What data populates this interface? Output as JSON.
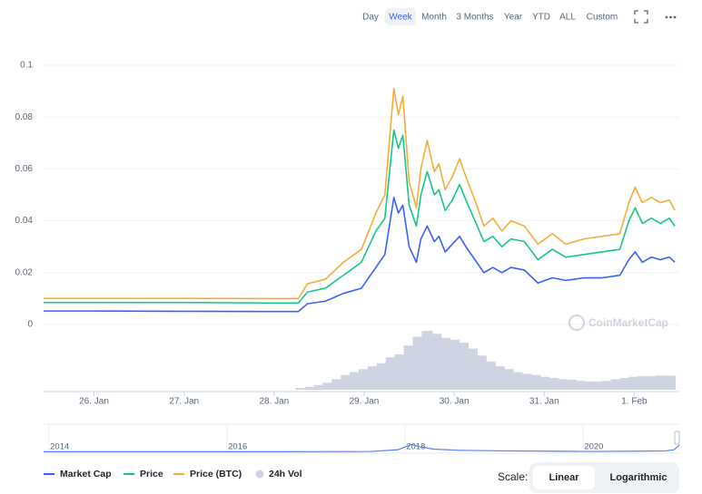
{
  "chart_data": {
    "type": "line",
    "ranges": [
      "Day",
      "Week",
      "Month",
      "3 Months",
      "Year",
      "YTD",
      "ALL",
      "Custom"
    ],
    "selected_range": 1,
    "x": [
      25.44,
      25.96,
      26.96,
      27.97,
      28.27,
      28.37,
      28.57,
      28.77,
      28.97,
      29.13,
      29.23,
      29.33,
      29.38,
      29.43,
      29.5,
      29.58,
      29.63,
      29.7,
      29.78,
      29.83,
      29.9,
      29.98,
      30.06,
      30.13,
      30.23,
      30.33,
      30.43,
      30.53,
      30.63,
      30.78,
      30.93,
      31.09,
      31.24,
      31.44,
      31.64,
      31.84,
      31.94,
      32.01,
      32.09,
      32.19,
      32.29,
      32.39,
      32.45
    ],
    "xlim": [
      25.44,
      32.5
    ],
    "xticks": [
      {
        "value": 26,
        "label": "26. Jan"
      },
      {
        "value": 27,
        "label": "27. Jan"
      },
      {
        "value": 28,
        "label": "28. Jan"
      },
      {
        "value": 29,
        "label": "29. Jan"
      },
      {
        "value": 30,
        "label": "30. Jan"
      },
      {
        "value": 31,
        "label": "31. Jan"
      },
      {
        "value": 32,
        "label": "1. Feb"
      }
    ],
    "ylim": [
      0,
      0.1
    ],
    "yticks": [
      0,
      0.02,
      0.04,
      0.06,
      0.08,
      0.1
    ],
    "grid": true,
    "series": [
      {
        "name": "Market Cap",
        "color": "#3861fb",
        "values": [
          0.0052,
          0.0052,
          0.0051,
          0.005,
          0.005,
          0.008,
          0.009,
          0.012,
          0.014,
          0.022,
          0.027,
          0.049,
          0.043,
          0.046,
          0.03,
          0.024,
          0.033,
          0.038,
          0.032,
          0.034,
          0.028,
          0.031,
          0.034,
          0.03,
          0.025,
          0.02,
          0.022,
          0.02,
          0.022,
          0.021,
          0.016,
          0.018,
          0.017,
          0.018,
          0.018,
          0.019,
          0.025,
          0.028,
          0.024,
          0.026,
          0.025,
          0.026,
          0.024
        ]
      },
      {
        "name": "Price",
        "color": "#16c784",
        "values": [
          0.0085,
          0.0085,
          0.0085,
          0.0083,
          0.0083,
          0.0125,
          0.014,
          0.019,
          0.024,
          0.036,
          0.041,
          0.075,
          0.068,
          0.073,
          0.046,
          0.038,
          0.05,
          0.059,
          0.05,
          0.052,
          0.044,
          0.048,
          0.054,
          0.048,
          0.04,
          0.032,
          0.034,
          0.03,
          0.033,
          0.032,
          0.025,
          0.029,
          0.026,
          0.027,
          0.028,
          0.029,
          0.04,
          0.045,
          0.039,
          0.041,
          0.039,
          0.041,
          0.038
        ]
      },
      {
        "name": "Price (BTC)",
        "color": "#f5ac37",
        "values": [
          0.0101,
          0.0101,
          0.0101,
          0.01,
          0.01,
          0.0157,
          0.0175,
          0.024,
          0.029,
          0.043,
          0.05,
          0.091,
          0.081,
          0.088,
          0.055,
          0.045,
          0.06,
          0.071,
          0.059,
          0.062,
          0.052,
          0.057,
          0.064,
          0.057,
          0.048,
          0.038,
          0.041,
          0.036,
          0.04,
          0.038,
          0.031,
          0.035,
          0.031,
          0.033,
          0.034,
          0.035,
          0.047,
          0.053,
          0.047,
          0.049,
          0.047,
          0.048,
          0.044
        ]
      }
    ],
    "volume": {
      "name": "24h Vol",
      "color": "#cfd4e3",
      "ylim": [
        0,
        100
      ],
      "x": [
        28.3,
        28.4,
        28.5,
        28.6,
        28.7,
        28.8,
        28.9,
        29.0,
        29.1,
        29.2,
        29.3,
        29.4,
        29.5,
        29.6,
        29.7,
        29.8,
        29.9,
        30.0,
        30.1,
        30.2,
        30.3,
        30.4,
        30.5,
        30.6,
        30.7,
        30.8,
        30.9,
        31.0,
        31.1,
        31.2,
        31.3,
        31.4,
        31.5,
        31.6,
        31.7,
        31.8,
        31.9,
        32.0,
        32.1,
        32.2,
        32.3,
        32.4
      ],
      "values": [
        3,
        5,
        8,
        12,
        18,
        25,
        30,
        35,
        40,
        45,
        55,
        60,
        75,
        90,
        100,
        95,
        88,
        85,
        80,
        70,
        58,
        48,
        40,
        35,
        30,
        27,
        25,
        22,
        20,
        18,
        17,
        15,
        14,
        14,
        15,
        18,
        20,
        22,
        23,
        23,
        24,
        24
      ]
    },
    "navigator": {
      "color": "#5b7cfa",
      "xlim": [
        2013.82,
        2020.96
      ],
      "ylim": [
        0,
        100
      ],
      "xticks": [
        2014,
        2016,
        2018,
        2020
      ],
      "x": [
        2013.82,
        2014.5,
        2015.5,
        2016.5,
        2017.5,
        2017.8,
        2017.95,
        2018.05,
        2018.2,
        2018.5,
        2019,
        2019.5,
        2020,
        2020.5,
        2020.8,
        2020.9,
        2020.96
      ],
      "values": [
        5,
        5,
        5,
        5,
        6,
        12,
        30,
        22,
        14,
        10,
        8,
        7,
        6,
        7,
        8,
        12,
        28
      ]
    },
    "watermark": "CoinMarketCap",
    "scale_label": "Scale:",
    "scale_options": [
      "Linear",
      "Logarithmic"
    ],
    "selected_scale": 0,
    "log_scale": false
  }
}
